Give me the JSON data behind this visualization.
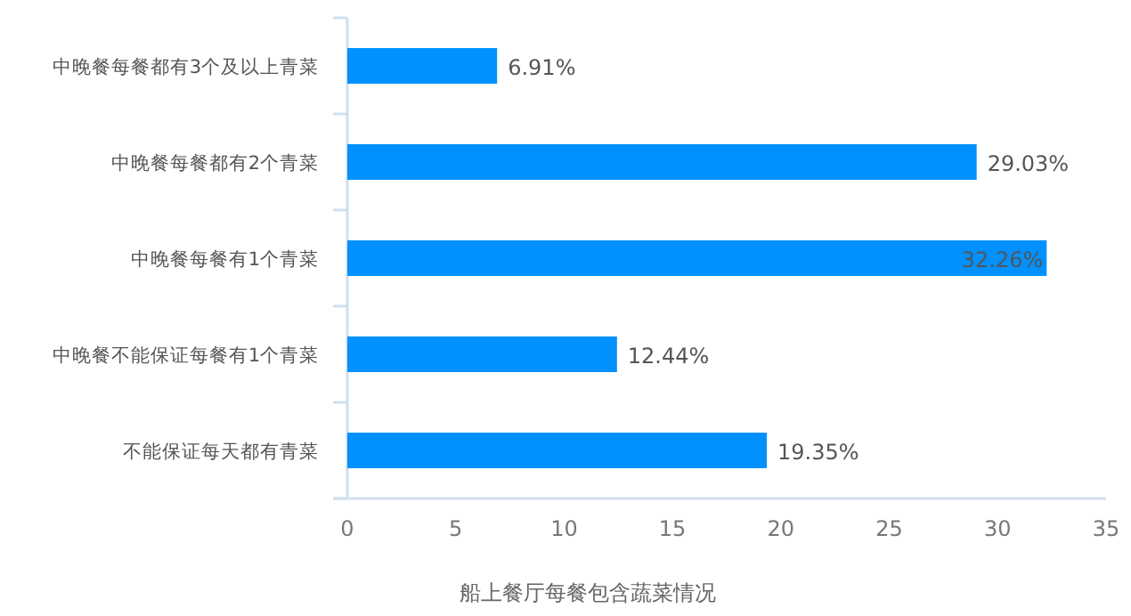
{
  "chart_data": {
    "type": "bar",
    "orientation": "horizontal",
    "title": "船上餐厅每餐包含蔬菜情况",
    "categories": [
      "中晚餐每餐都有3个及以上青菜",
      "中晚餐每餐都有2个青菜",
      "中晚餐每餐有1个青菜",
      "中晚餐不能保证每餐有1个青菜",
      "不能保证每天都有青菜"
    ],
    "values": [
      6.91,
      29.03,
      32.26,
      12.44,
      19.35
    ],
    "value_labels": [
      "6.91%",
      "29.03%",
      "32.26%",
      "12.44%",
      "19.35%"
    ],
    "color": "#0091ff",
    "xlim": [
      0,
      35
    ],
    "xticks": [
      0,
      5,
      10,
      15,
      20,
      25,
      30,
      35
    ],
    "grid": false
  }
}
